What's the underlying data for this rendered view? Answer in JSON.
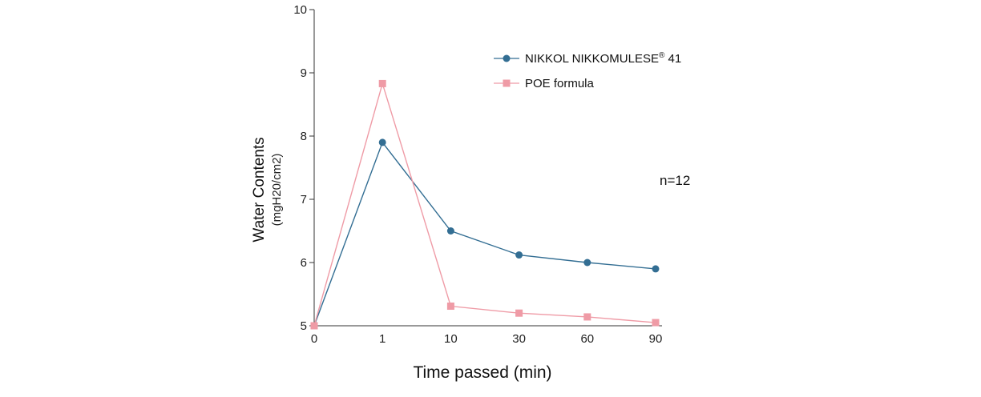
{
  "chart_data": {
    "type": "line",
    "categories": [
      "0",
      "1",
      "10",
      "30",
      "60",
      "90"
    ],
    "xlabel": "Time passed (min)",
    "ylabel": "Water Contents",
    "ylabel_unit": "(mgH20/cm2)",
    "ylim": [
      5,
      10
    ],
    "yticks": [
      "5",
      "6",
      "7",
      "8",
      "9",
      "10"
    ],
    "grid": false,
    "legend_position": "top-right",
    "annotation": "n=12",
    "series": [
      {
        "name": "NIKKOL NIKKOMULESE",
        "name_sup": "®",
        "name_suffix": " 41",
        "marker": "circle",
        "color": "#336e93",
        "values": [
          5.0,
          7.9,
          6.5,
          6.12,
          6.0,
          5.9
        ]
      },
      {
        "name": "POE formula",
        "marker": "square",
        "color": "#ef9ba6",
        "values": [
          5.0,
          8.83,
          5.31,
          5.2,
          5.14,
          5.05
        ]
      }
    ]
  }
}
